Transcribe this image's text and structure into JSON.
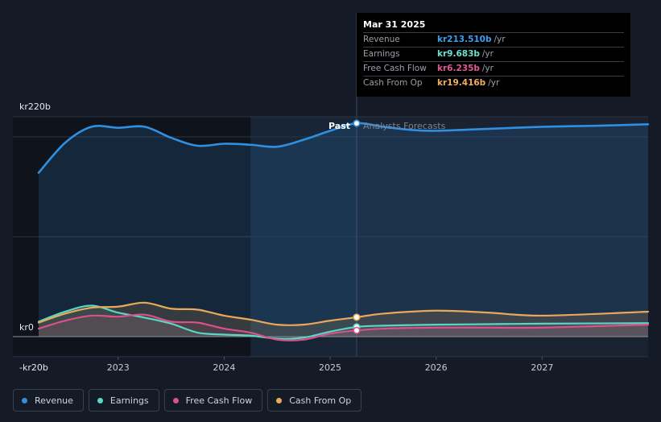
{
  "colors": {
    "revenue": "#2f8fe0",
    "earnings": "#58d6c6",
    "free_cash_flow": "#d9508a",
    "cash_from_op": "#e9a95a",
    "background": "#151b26"
  },
  "tooltip": {
    "date": "Mar 31 2025",
    "rows": [
      {
        "label": "Revenue",
        "value": "kr213.510b",
        "unit": "/yr",
        "color": "#3d9ff0"
      },
      {
        "label": "Earnings",
        "value": "kr9.683b",
        "unit": "/yr",
        "color": "#6ee0d0"
      },
      {
        "label": "Free Cash Flow",
        "value": "kr6.235b",
        "unit": "/yr",
        "color": "#e05a96"
      },
      {
        "label": "Cash From Op",
        "value": "kr19.416b",
        "unit": "/yr",
        "color": "#eeb060"
      }
    ]
  },
  "legend": [
    {
      "label": "Revenue",
      "color": "#2f8fe0"
    },
    {
      "label": "Earnings",
      "color": "#58d6c6"
    },
    {
      "label": "Free Cash Flow",
      "color": "#d9508a"
    },
    {
      "label": "Cash From Op",
      "color": "#e9a95a"
    }
  ],
  "chart_data": {
    "type": "line",
    "past_label": "Past",
    "forecast_label": "Analysts Forecasts",
    "y_unit": "kr billions",
    "ylim": [
      -20,
      220
    ],
    "y_tick_labels": [
      "kr220b",
      "kr0",
      "-kr20b"
    ],
    "y_ticks": [
      220,
      0,
      -20
    ],
    "x_tick_labels": [
      "2023",
      "2024",
      "2025",
      "2026",
      "2027"
    ],
    "x_ticks": [
      2023.0,
      2024.0,
      2025.0,
      2026.0,
      2027.0
    ],
    "xlim": [
      2022.25,
      2028.0
    ],
    "past_end": 2025.25,
    "highlight_start": 2024.25,
    "series": [
      {
        "name": "Revenue",
        "color": "#2f8fe0",
        "x": [
          2022.25,
          2022.5,
          2022.75,
          2023.0,
          2023.25,
          2023.5,
          2023.75,
          2024.0,
          2024.25,
          2024.5,
          2024.75,
          2025.0,
          2025.25,
          2025.5,
          2025.75,
          2026.0,
          2026.5,
          2027.0,
          2027.5,
          2028.0
        ],
        "y": [
          164,
          194,
          210,
          209,
          210,
          199,
          191,
          193,
          192,
          190,
          197,
          206,
          213.5,
          210,
          207,
          206,
          208,
          210,
          211,
          212.5
        ],
        "forecast_from": 2025.25
      },
      {
        "name": "Earnings",
        "color": "#58d6c6",
        "x": [
          2022.25,
          2022.5,
          2022.75,
          2023.0,
          2023.25,
          2023.5,
          2023.75,
          2024.0,
          2024.25,
          2024.5,
          2024.75,
          2025.0,
          2025.25,
          2025.5,
          2026.0,
          2026.5,
          2027.0,
          2028.0
        ],
        "y": [
          15,
          25,
          31,
          24,
          19,
          13,
          4,
          2,
          1,
          -2,
          -1,
          5,
          9.7,
          11,
          12,
          12.5,
          13,
          13.5
        ],
        "forecast_from": 2025.25
      },
      {
        "name": "Free Cash Flow",
        "color": "#d9508a",
        "x": [
          2022.25,
          2022.5,
          2022.75,
          2023.0,
          2023.25,
          2023.5,
          2023.75,
          2024.0,
          2024.25,
          2024.5,
          2024.75,
          2025.0,
          2025.25,
          2025.5,
          2026.0,
          2026.5,
          2027.0,
          2028.0
        ],
        "y": [
          8,
          16,
          21,
          20,
          22,
          15,
          14,
          8,
          4,
          -3,
          -3,
          3,
          6.2,
          8,
          9,
          9,
          9,
          12
        ],
        "forecast_from": 2025.25
      },
      {
        "name": "Cash From Op",
        "color": "#e9a95a",
        "x": [
          2022.25,
          2022.5,
          2022.75,
          2023.0,
          2023.25,
          2023.5,
          2023.75,
          2024.0,
          2024.25,
          2024.5,
          2024.75,
          2025.0,
          2025.25,
          2025.5,
          2026.0,
          2026.5,
          2027.0,
          2028.0
        ],
        "y": [
          14,
          23,
          29,
          30,
          34,
          28,
          27,
          21,
          17,
          12,
          12,
          16,
          19.4,
          23,
          26,
          24,
          21,
          25
        ],
        "forecast_from": 2025.25
      }
    ],
    "markers": [
      {
        "series": "Revenue",
        "x": 2025.25,
        "y": 213.5
      },
      {
        "series": "Earnings",
        "x": 2025.25,
        "y": 9.7
      },
      {
        "series": "Free Cash Flow",
        "x": 2025.25,
        "y": 6.2
      },
      {
        "series": "Cash From Op",
        "x": 2025.25,
        "y": 19.4
      }
    ],
    "grid": true
  }
}
